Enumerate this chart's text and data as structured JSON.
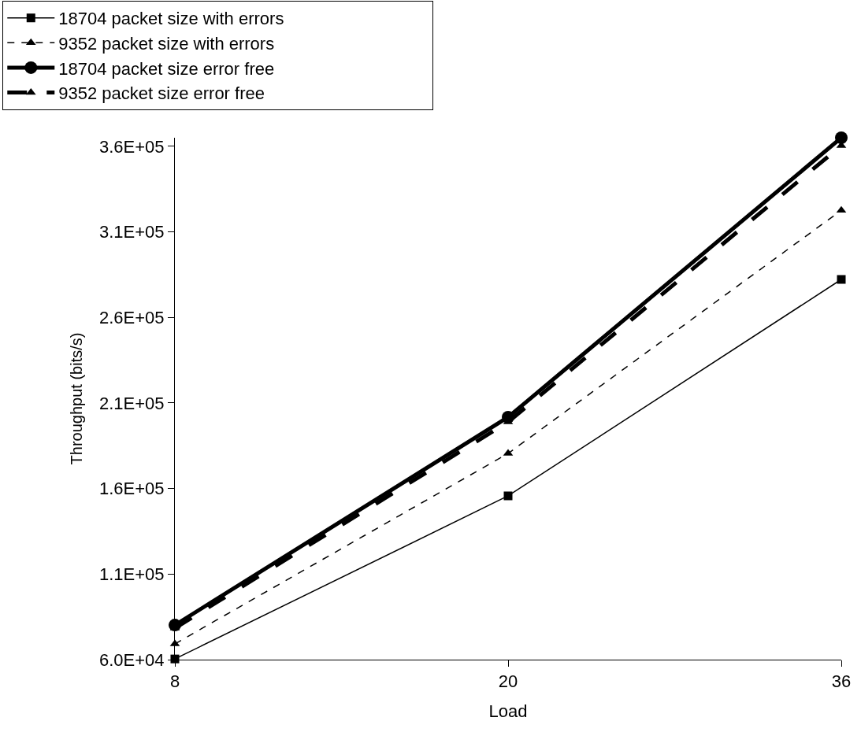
{
  "chart_data": {
    "type": "line",
    "xlabel": "Load",
    "ylabel": "Throughput (bits/s)",
    "categories": [
      "8",
      "20",
      "36"
    ],
    "series": [
      {
        "name": "18704 packet size with errors",
        "color": "#000000",
        "values": [
          60400,
          155700,
          282200
        ],
        "marker": "square",
        "line_style": "solid"
      },
      {
        "name": "9352 packet size with errors",
        "color": "#000000",
        "values": [
          69200,
          180500,
          322600
        ],
        "marker": "triangle",
        "line_style": "dashed"
      },
      {
        "name": "18704 packet size error free",
        "color": "#000000",
        "values": [
          80200,
          201700,
          365000
        ],
        "marker": "circle",
        "line_style": "solid"
      },
      {
        "name": "9352 packet size error free",
        "color": "#000000",
        "values": [
          78400,
          198900,
          360400
        ],
        "marker": "triangle",
        "line_style": "longdash"
      }
    ],
    "ylim": [
      60000,
      365000
    ],
    "yticks": [
      {
        "value": 60000,
        "label": "6.0E+04"
      },
      {
        "value": 110000,
        "label": "1.1E+05"
      },
      {
        "value": 160000,
        "label": "1.6E+05"
      },
      {
        "value": 210000,
        "label": "2.1E+05"
      },
      {
        "value": 260000,
        "label": "2.6E+05"
      },
      {
        "value": 310000,
        "label": "3.1E+05"
      },
      {
        "value": 360000,
        "label": "3.6E+05"
      }
    ],
    "legend": "top"
  }
}
